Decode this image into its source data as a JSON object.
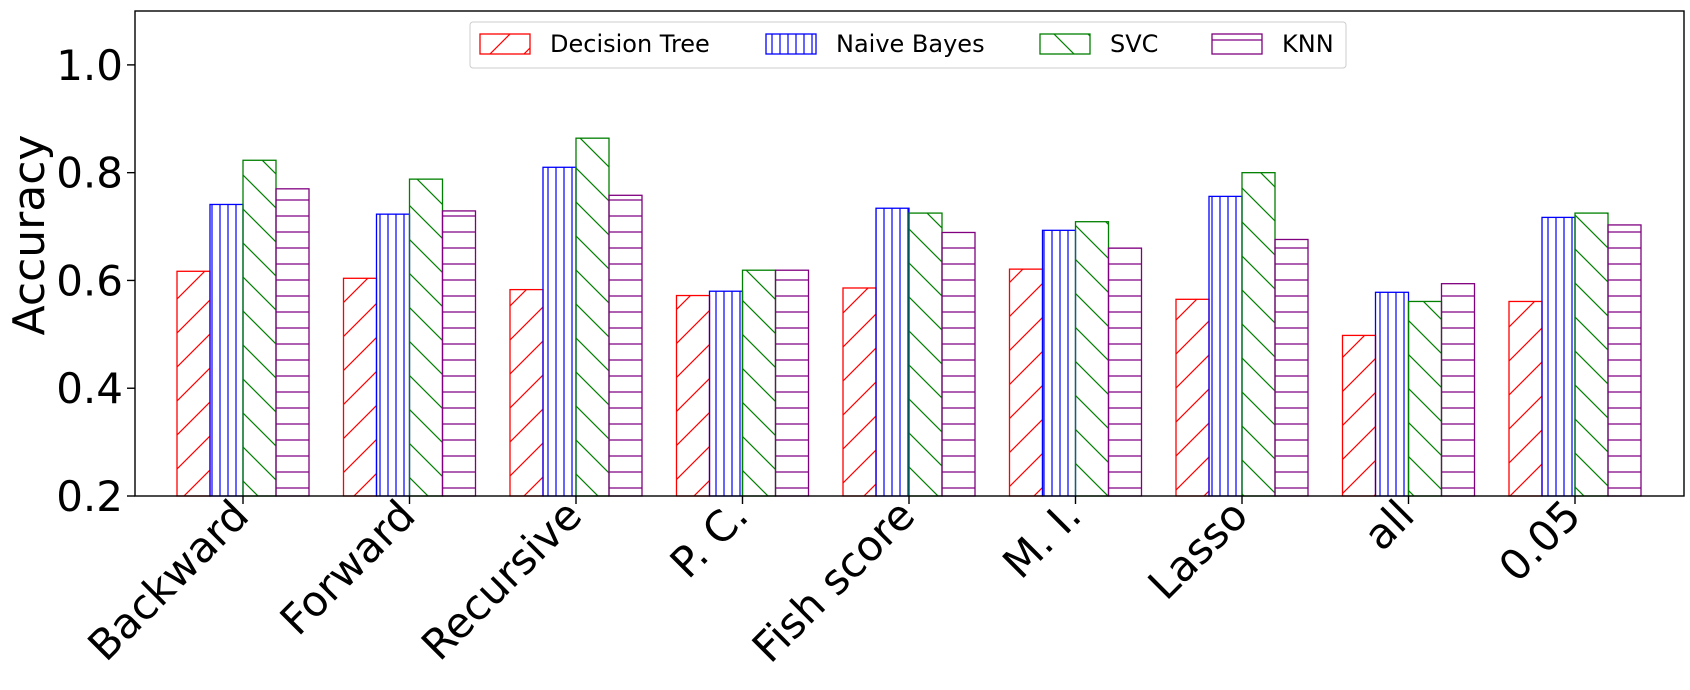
{
  "chart_data": {
    "type": "bar",
    "title": "",
    "xlabel": "",
    "ylabel": "Accuracy",
    "ylim": [
      0.2,
      1.1
    ],
    "yticks": [
      "0.2",
      "0.4",
      "0.6",
      "0.8",
      "1.0"
    ],
    "grid": false,
    "legend_position": "top-center",
    "categories": [
      "Backward",
      "Forward",
      "Recursive",
      "P. C.",
      "Fish score",
      "M. I.",
      "Lasso",
      "all",
      "0.05"
    ],
    "series": [
      {
        "name": "Decision Tree",
        "color": "#ff0000",
        "hatch": "diagonal-forward",
        "values": [
          0.617,
          0.604,
          0.583,
          0.572,
          0.586,
          0.621,
          0.565,
          0.498,
          0.561
        ]
      },
      {
        "name": "Naive Bayes",
        "color": "#0000ff",
        "hatch": "vertical",
        "values": [
          0.741,
          0.723,
          0.81,
          0.58,
          0.734,
          0.693,
          0.756,
          0.578,
          0.717
        ]
      },
      {
        "name": "SVC",
        "color": "#008000",
        "hatch": "diagonal-backward",
        "values": [
          0.823,
          0.788,
          0.864,
          0.619,
          0.725,
          0.709,
          0.8,
          0.561,
          0.725
        ]
      },
      {
        "name": "KNN",
        "color": "#800080",
        "hatch": "horizontal",
        "values": [
          0.77,
          0.729,
          0.758,
          0.619,
          0.689,
          0.66,
          0.676,
          0.594,
          0.703
        ]
      }
    ]
  }
}
